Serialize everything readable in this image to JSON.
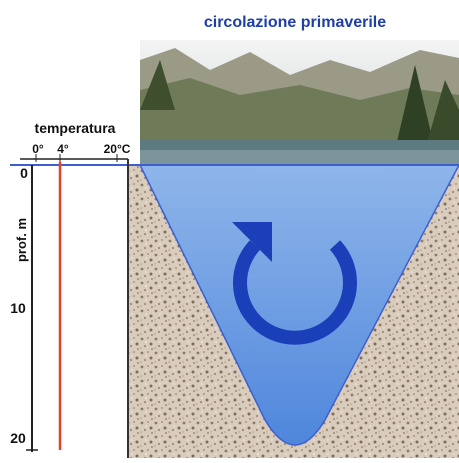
{
  "title": "circolazione primaverile",
  "temperature_axis": {
    "label": "temperatura",
    "ticks": [
      "0°",
      "4°",
      "20°C"
    ]
  },
  "depth_axis": {
    "label": "prof. m",
    "ticks": [
      "0",
      "10",
      "20"
    ]
  }
}
